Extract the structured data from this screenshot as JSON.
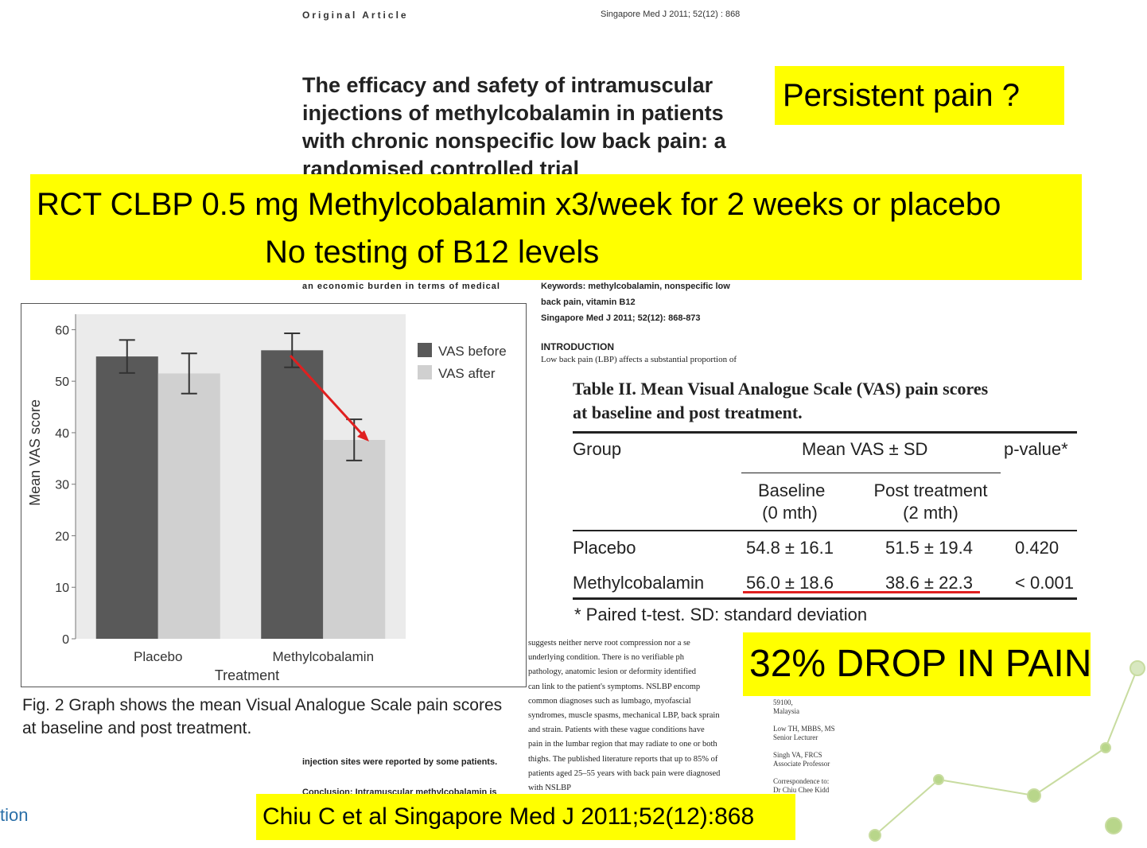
{
  "header": {
    "journal_section": "Original Article",
    "citation": "Singapore Med J 2011; 52(12) : 868"
  },
  "paper_title": [
    "The efficacy and safety of intramuscular",
    "injections of methylcobalamin in patients",
    "with chronic nonspecific low back pain: a",
    "randomised controlled trial"
  ],
  "callouts": {
    "question": "Persistent pain ?",
    "summary": [
      "RCT CLBP 0.5 mg Methylcobalamin x3/week for 2 weeks or placebo",
      "No testing of B12 levels"
    ],
    "result": "32% DROP IN PAIN",
    "reference": "Chiu C et al Singapore Med J 2011;52(12):868"
  },
  "figure": {
    "type": "bar",
    "categories": [
      "Placebo",
      "Methylcobalamin"
    ],
    "series": [
      {
        "name": "VAS before",
        "color": "#595959",
        "values": [
          54.8,
          56.0
        ],
        "errors": [
          3.2,
          3.3
        ]
      },
      {
        "name": "VAS after",
        "color": "#d0d0d0",
        "values": [
          51.5,
          38.6
        ],
        "errors": [
          3.9,
          4.0
        ]
      }
    ],
    "ylim": [
      0,
      63
    ],
    "yticks": [
      0,
      10,
      20,
      30,
      40,
      50,
      60
    ],
    "x_label": "Treatment",
    "y_label": "Mean VAS score",
    "caption": [
      "Fig. 2 Graph shows the mean Visual Analogue Scale pain scores",
      "at baseline and post treatment."
    ]
  },
  "table": {
    "caption": [
      "Table II. Mean Visual Analogue Scale (VAS) pain scores",
      "at baseline and post treatment."
    ],
    "header": [
      "Group",
      "Mean VAS ± SD",
      "p-value*"
    ],
    "subheader": [
      [
        "Baseline",
        "(0 mth)"
      ],
      [
        "Post treatment",
        "(2 mth)"
      ]
    ],
    "rows": [
      [
        "Placebo",
        "54.8 ± 16.1",
        "51.5 ± 19.4",
        "0.420"
      ],
      [
        "Methylcobalamin",
        "56.0 ± 18.6",
        "38.6 ± 22.3",
        "< 0.001"
      ]
    ],
    "footnote": "* Paired t-test. SD: standard deviation"
  },
  "paper_text": {
    "abstract_lines": [
      "an economic burden in terms of medical"
    ],
    "abstract_bottom": [
      "injection sites were reported by some patients.",
      "Conclusion: Intramuscular methylcobalamin is"
    ],
    "keywords": [
      "Keywords: methylcobalamin, nonspecific low",
      "back pain, vitamin B12",
      "Singapore Med J 2011; 52(12): 868-873"
    ],
    "intro_heading": "INTRODUCTION",
    "intro_lines": [
      "Low back pain (LBP) affects a substantial proportion of"
    ],
    "body_lines": [
      "suggests neither nerve root compression nor a se",
      "underlying condition. There is no verifiable ph",
      "pathology, anatomic lesion or deformity identified",
      "can link to the patient's symptoms. NSLBP encomp",
      "common diagnoses such as lumbago, myofascial",
      "syndromes, muscle spasms, mechanical LBP, back sprain",
      "and strain. Patients with these vague conditions have",
      "pain in the lumbar region that may radiate to one or both",
      "thighs. The published literature reports that up to 85% of",
      "patients aged 25–55 years with back pain were diagnosed",
      "with NSLBP"
    ],
    "affiliations": [
      "59100,",
      "Malaysia",
      "",
      "Low TH, MBBS, MS",
      "Senior Lecturer",
      "",
      "Singh VA, FRCS",
      "Associate Professor",
      "",
      "Correspondence to:",
      "Dr Chiu Chee Kidd"
    ]
  },
  "footer_fragment": "tion"
}
